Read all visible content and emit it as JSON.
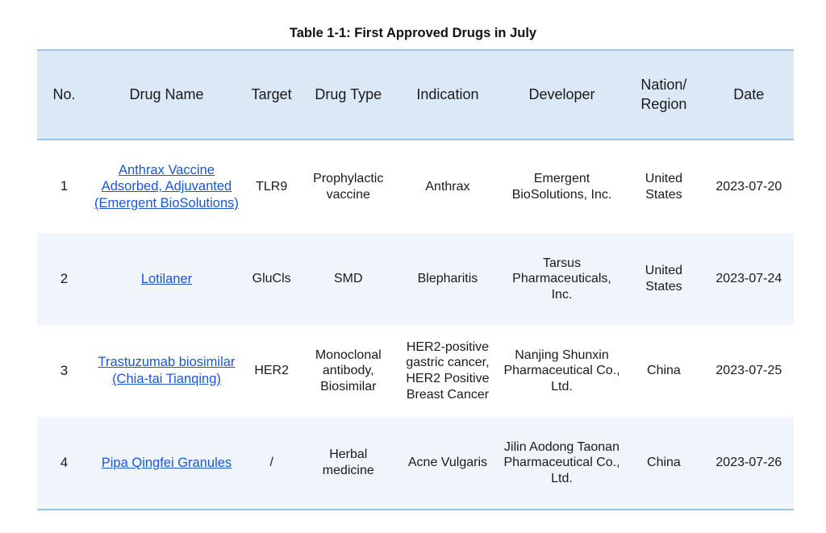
{
  "caption": "Table 1-1:  First Approved Drugs in July",
  "columns": {
    "no": "No.",
    "drug_name": "Drug Name",
    "target": "Target",
    "drug_type": "Drug Type",
    "indication": "Indication",
    "developer": "Developer",
    "nation_line1": "Nation/",
    "nation_line2": "Region",
    "date": "Date"
  },
  "rows": [
    {
      "no": "1",
      "drug_name": "Anthrax Vaccine Adsorbed, Adjuvanted (Emergent BioSolutions)",
      "target": "TLR9",
      "drug_type": "Prophylactic vaccine",
      "indication": "Anthrax",
      "developer": "Emergent BioSolutions, Inc.",
      "nation": "United States",
      "date": "2023-07-20"
    },
    {
      "no": "2",
      "drug_name": "Lotilaner",
      "target": "GluCls",
      "drug_type": "SMD",
      "indication": "Blepharitis",
      "developer": "Tarsus Pharmaceuticals, Inc.",
      "nation": "United States",
      "date": "2023-07-24"
    },
    {
      "no": "3",
      "drug_name": "Trastuzumab biosimilar (Chia-tai Tianqing)",
      "target": "HER2",
      "drug_type": "Monoclonal antibody, Biosimilar",
      "indication": "HER2-positive gastric cancer, HER2 Positive Breast Cancer",
      "developer": "Nanjing Shunxin Pharmaceutical Co., Ltd.",
      "nation": "China",
      "date": "2023-07-25"
    },
    {
      "no": "4",
      "drug_name": "Pipa Qingfei Granules",
      "target": "/",
      "drug_type": "Herbal medicine",
      "indication": "Acne Vulgaris",
      "developer": "Jilin Aodong Taonan Pharmaceutical Co., Ltd.",
      "nation": "China",
      "date": "2023-07-26"
    }
  ],
  "colors": {
    "header_bg": "#dbe8f5",
    "row_alt_bg": "#f0f5fb",
    "rule": "#9fc4e8",
    "link": "#1a56d6"
  }
}
